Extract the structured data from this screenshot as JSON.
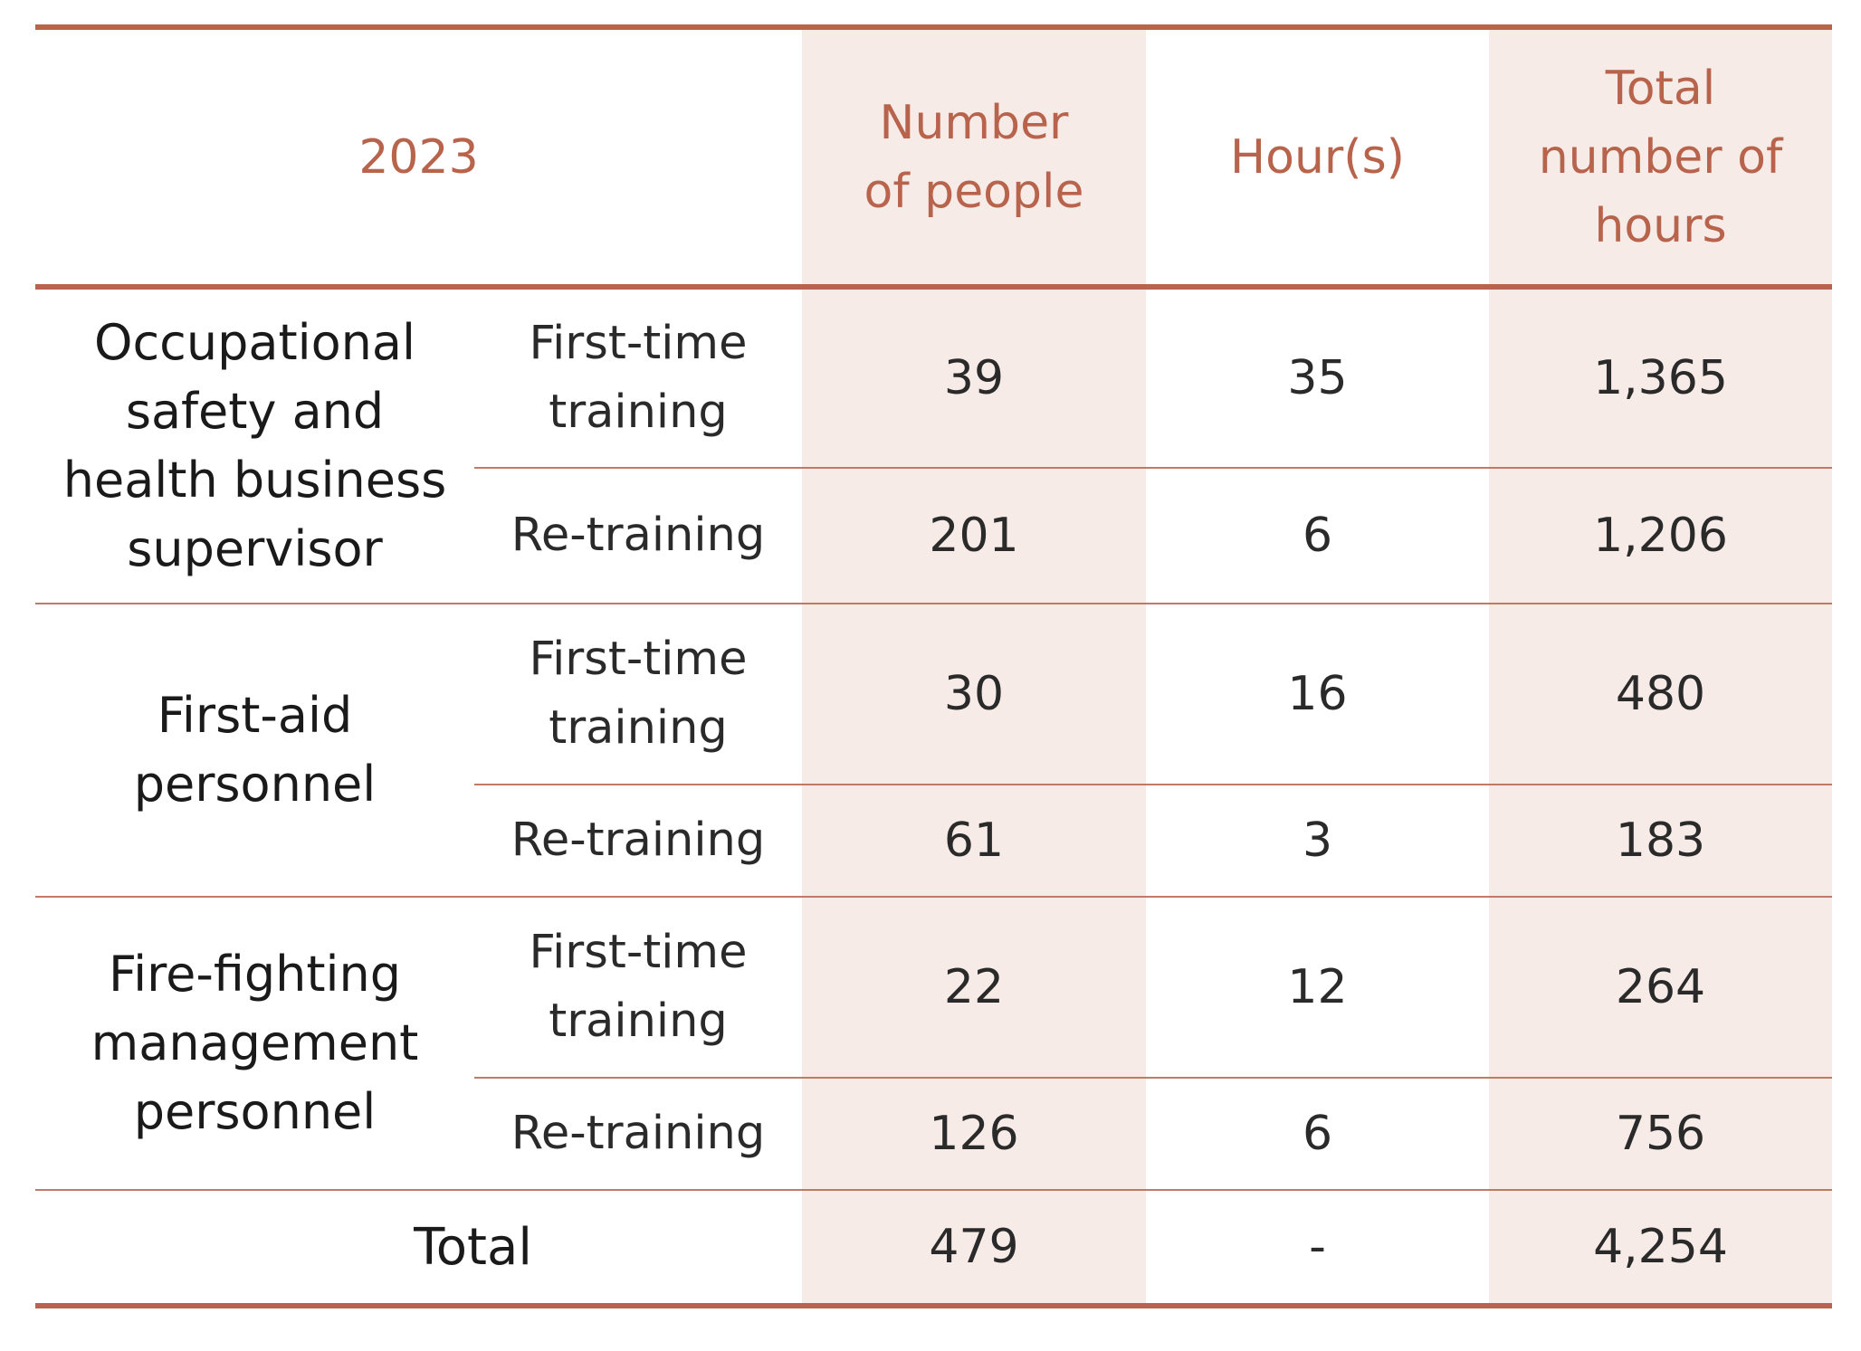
{
  "header": {
    "year": "2023",
    "col_people": "Number of people",
    "col_hours": "Hour(s)",
    "col_total_hours": "Total number of hours"
  },
  "groups": [
    {
      "category": "Occupational safety and health business supervisor",
      "rows": [
        {
          "type": "First-time training",
          "people": "39",
          "hours": "35",
          "total": "1,365"
        },
        {
          "type": "Re-training",
          "people": "201",
          "hours": "6",
          "total": "1,206"
        }
      ]
    },
    {
      "category": "First-aid personnel",
      "rows": [
        {
          "type": "First-time training",
          "people": "30",
          "hours": "16",
          "total": "480"
        },
        {
          "type": "Re-training",
          "people": "61",
          "hours": "3",
          "total": "183"
        }
      ]
    },
    {
      "category": "Fire-fighting management personnel",
      "rows": [
        {
          "type": "First-time training",
          "people": "22",
          "hours": "12",
          "total": "264"
        },
        {
          "type": "Re-training",
          "people": "126",
          "hours": "6",
          "total": "756"
        }
      ]
    }
  ],
  "total": {
    "label": "Total",
    "people": "479",
    "hours": "-",
    "total": "4,254"
  },
  "colors": {
    "accent": "#b8644c",
    "shade": "#f7ebe8",
    "text": "#1a1a1a"
  }
}
